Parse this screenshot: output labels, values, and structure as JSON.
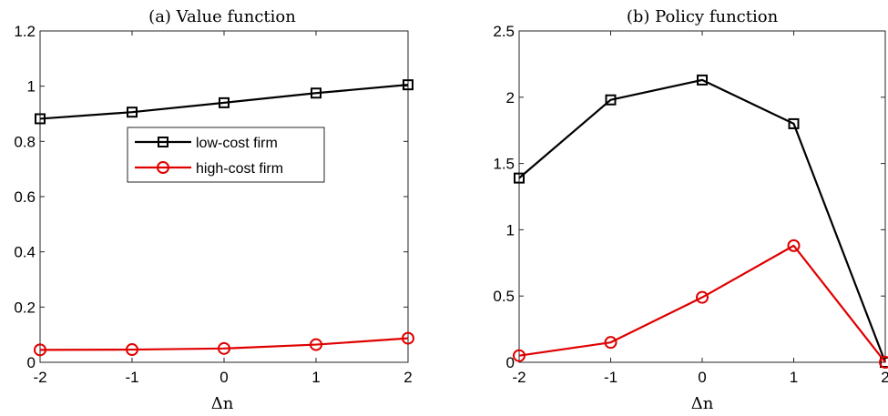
{
  "chart_data": [
    {
      "type": "line",
      "title": "(a) Value function",
      "xlabel": "Δn",
      "ylabel": "",
      "x": [
        -2,
        -1,
        0,
        1,
        2
      ],
      "xticks": [
        "-2",
        "-1",
        "0",
        "1",
        "2"
      ],
      "yticks": [
        "0",
        "0.2",
        "0.4",
        "0.6",
        "0.8",
        "1",
        "1.2"
      ],
      "xlim": [
        -2,
        2
      ],
      "ylim": [
        0,
        1.2
      ],
      "grid": false,
      "legend": {
        "placement": "upper-center"
      },
      "series": [
        {
          "name": "low-cost firm",
          "color": "#000000",
          "marker": "square",
          "values": [
            0.882,
            0.906,
            0.94,
            0.975,
            1.005
          ]
        },
        {
          "name": "high-cost firm",
          "color": "#e00000",
          "marker": "circle",
          "values": [
            0.045,
            0.046,
            0.05,
            0.064,
            0.087
          ]
        }
      ]
    },
    {
      "type": "line",
      "title": "(b) Policy function",
      "xlabel": "Δn",
      "ylabel": "",
      "x": [
        -2,
        -1,
        0,
        1,
        2
      ],
      "xticks": [
        "-2",
        "-1",
        "0",
        "1",
        "2"
      ],
      "yticks": [
        "0",
        "0.5",
        "1",
        "1.5",
        "2",
        "2.5"
      ],
      "xlim": [
        -2,
        2
      ],
      "ylim": [
        0,
        2.5
      ],
      "grid": false,
      "series": [
        {
          "name": "low-cost firm",
          "color": "#000000",
          "marker": "square",
          "values": [
            1.39,
            1.98,
            2.13,
            1.8,
            0.0
          ]
        },
        {
          "name": "high-cost firm",
          "color": "#e00000",
          "marker": "circle",
          "values": [
            0.05,
            0.15,
            0.49,
            0.88,
            0.0
          ]
        }
      ]
    }
  ]
}
